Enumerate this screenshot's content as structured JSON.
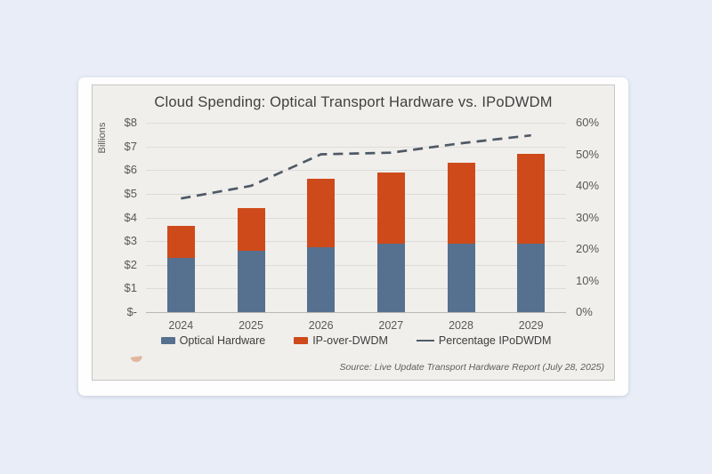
{
  "page": {
    "background_color": "#e8edf7",
    "card_color": "#fefefe",
    "panel_color": "#f0efec"
  },
  "chart_data": {
    "type": "bar",
    "subtype": "stacked-bars-with-line",
    "title": "Cloud Spending: Optical Transport Hardware vs. IPoDWDM",
    "categories": [
      "2024",
      "2025",
      "2026",
      "2027",
      "2028",
      "2029"
    ],
    "series": [
      {
        "name": "Optical Hardware",
        "type": "bar",
        "stack": true,
        "axis": "left",
        "color": "#56708f",
        "values": [
          2.3,
          2.6,
          2.75,
          2.9,
          2.9,
          2.9
        ]
      },
      {
        "name": "IP-over-DWDM",
        "type": "bar",
        "stack": true,
        "axis": "left",
        "color": "#ce4a1a",
        "values": [
          1.35,
          1.8,
          2.9,
          3.0,
          3.4,
          3.8
        ]
      },
      {
        "name": "Percentage IPoDWDM",
        "type": "line",
        "dashed": true,
        "axis": "right",
        "color": "#4f5a65",
        "values": [
          36,
          40,
          50,
          50.5,
          53.5,
          56
        ]
      }
    ],
    "stack_totals": [
      3.65,
      4.4,
      5.65,
      5.9,
      6.3,
      6.7
    ],
    "left_axis": {
      "label": "Billions",
      "min": 0,
      "max": 8,
      "step": 1,
      "ticks": [
        "$8",
        "$7",
        "$6",
        "$5",
        "$4",
        "$3",
        "$2",
        "$1",
        "$-"
      ]
    },
    "right_axis": {
      "min": 0,
      "max": 60,
      "step": 10,
      "ticks": [
        "60%",
        "50%",
        "40%",
        "30%",
        "20%",
        "10%",
        "0%"
      ]
    },
    "grid": true,
    "legend_position": "bottom",
    "source": "Source: Live Update Transport Hardware Report (July 28, 2025)"
  }
}
